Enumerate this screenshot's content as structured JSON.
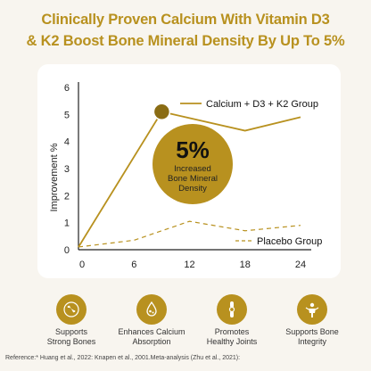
{
  "headline": {
    "line1": "Clinically Proven Calcium With Vitamin D3",
    "line2": "& K2 Boost Bone Mineral Density By Up To 5%"
  },
  "colors": {
    "accent": "#b8911f",
    "text": "#333333",
    "background": "#f8f5ef"
  },
  "chart_data": {
    "type": "line",
    "x": [
      0,
      6,
      12,
      18,
      24
    ],
    "xticks": [
      "0",
      "6",
      "12",
      "18",
      "24"
    ],
    "yticks": [
      "0",
      "1",
      "2",
      "3",
      "4",
      "5",
      "6"
    ],
    "xlim": [
      0,
      24
    ],
    "ylim": [
      0,
      6
    ],
    "ylabel": "Improvement %",
    "xlabel": "",
    "title": "",
    "grid": false,
    "series": [
      {
        "name": "Calcium + D3 + K2 Group",
        "x": [
          0,
          9,
          18,
          24
        ],
        "values": [
          0.1,
          5.1,
          4.4,
          4.9
        ],
        "style": "solid"
      },
      {
        "name": "Placebo Group",
        "x": [
          0,
          6,
          12,
          18,
          24
        ],
        "values": [
          0.1,
          0.35,
          1.05,
          0.7,
          0.9
        ],
        "style": "dashed"
      }
    ],
    "annotation": {
      "big": "5%",
      "line1": "Increased",
      "line2": "Bone Mineral",
      "line3": "Density"
    }
  },
  "features": [
    {
      "icon": "bone-icon",
      "line1": "Supports",
      "line2": "Strong Bones"
    },
    {
      "icon": "calcium-absorption-icon",
      "line1": "Enhances Calcium",
      "line2": "Absorption"
    },
    {
      "icon": "joint-icon",
      "line1": "Promotes",
      "line2": "Healthy Joints"
    },
    {
      "icon": "bone-integrity-icon",
      "line1": "Supports Bone",
      "line2": "Integrity"
    }
  ],
  "reference": "Reference:* Huang et al., 2022: Knapen et al., 2001.Meta-analysis (Zhu et al., 2021):"
}
